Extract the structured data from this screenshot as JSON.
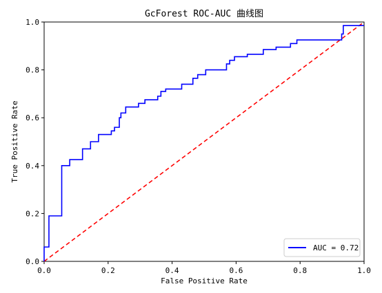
{
  "chart_data": {
    "type": "line",
    "title": "GcForest ROC-AUC 曲线图",
    "xlabel": "False Positive Rate",
    "ylabel": "True Positive Rate",
    "xlim": [
      0.0,
      1.0
    ],
    "ylim": [
      0.0,
      1.0
    ],
    "x_ticks": [
      "0.0",
      "0.2",
      "0.4",
      "0.6",
      "0.8",
      "1.0"
    ],
    "y_ticks": [
      "0.0",
      "0.2",
      "0.4",
      "0.6",
      "0.8",
      "1.0"
    ],
    "legend_placement": "lower-right",
    "grid": false,
    "series": [
      {
        "name": "AUC = 0.72",
        "color": "#0000ff",
        "style": "solid",
        "step": true,
        "x": [
          0.0,
          0.0,
          0.015,
          0.015,
          0.055,
          0.055,
          0.08,
          0.08,
          0.12,
          0.12,
          0.145,
          0.145,
          0.17,
          0.17,
          0.21,
          0.21,
          0.22,
          0.22,
          0.235,
          0.235,
          0.24,
          0.24,
          0.255,
          0.255,
          0.295,
          0.295,
          0.315,
          0.315,
          0.355,
          0.355,
          0.365,
          0.365,
          0.38,
          0.38,
          0.43,
          0.43,
          0.465,
          0.465,
          0.48,
          0.48,
          0.505,
          0.505,
          0.57,
          0.57,
          0.58,
          0.58,
          0.595,
          0.595,
          0.635,
          0.635,
          0.685,
          0.685,
          0.725,
          0.725,
          0.77,
          0.77,
          0.79,
          0.79,
          0.905,
          0.905,
          0.93,
          0.93,
          0.935,
          0.935,
          0.95,
          1.0
        ],
        "y": [
          0.0,
          0.06,
          0.06,
          0.19,
          0.19,
          0.4,
          0.4,
          0.425,
          0.425,
          0.47,
          0.47,
          0.5,
          0.5,
          0.53,
          0.53,
          0.545,
          0.545,
          0.56,
          0.56,
          0.6,
          0.6,
          0.62,
          0.62,
          0.645,
          0.645,
          0.66,
          0.66,
          0.675,
          0.675,
          0.69,
          0.69,
          0.71,
          0.71,
          0.72,
          0.72,
          0.74,
          0.74,
          0.765,
          0.765,
          0.78,
          0.78,
          0.8,
          0.8,
          0.825,
          0.825,
          0.84,
          0.84,
          0.855,
          0.855,
          0.865,
          0.865,
          0.885,
          0.885,
          0.895,
          0.895,
          0.91,
          0.91,
          0.925,
          0.925,
          0.925,
          0.925,
          0.95,
          0.95,
          0.985,
          0.985,
          0.985
        ]
      },
      {
        "name": "",
        "color": "#ff0000",
        "style": "dashed",
        "x": [
          0.0,
          1.0
        ],
        "y": [
          0.0,
          1.0
        ]
      }
    ]
  }
}
